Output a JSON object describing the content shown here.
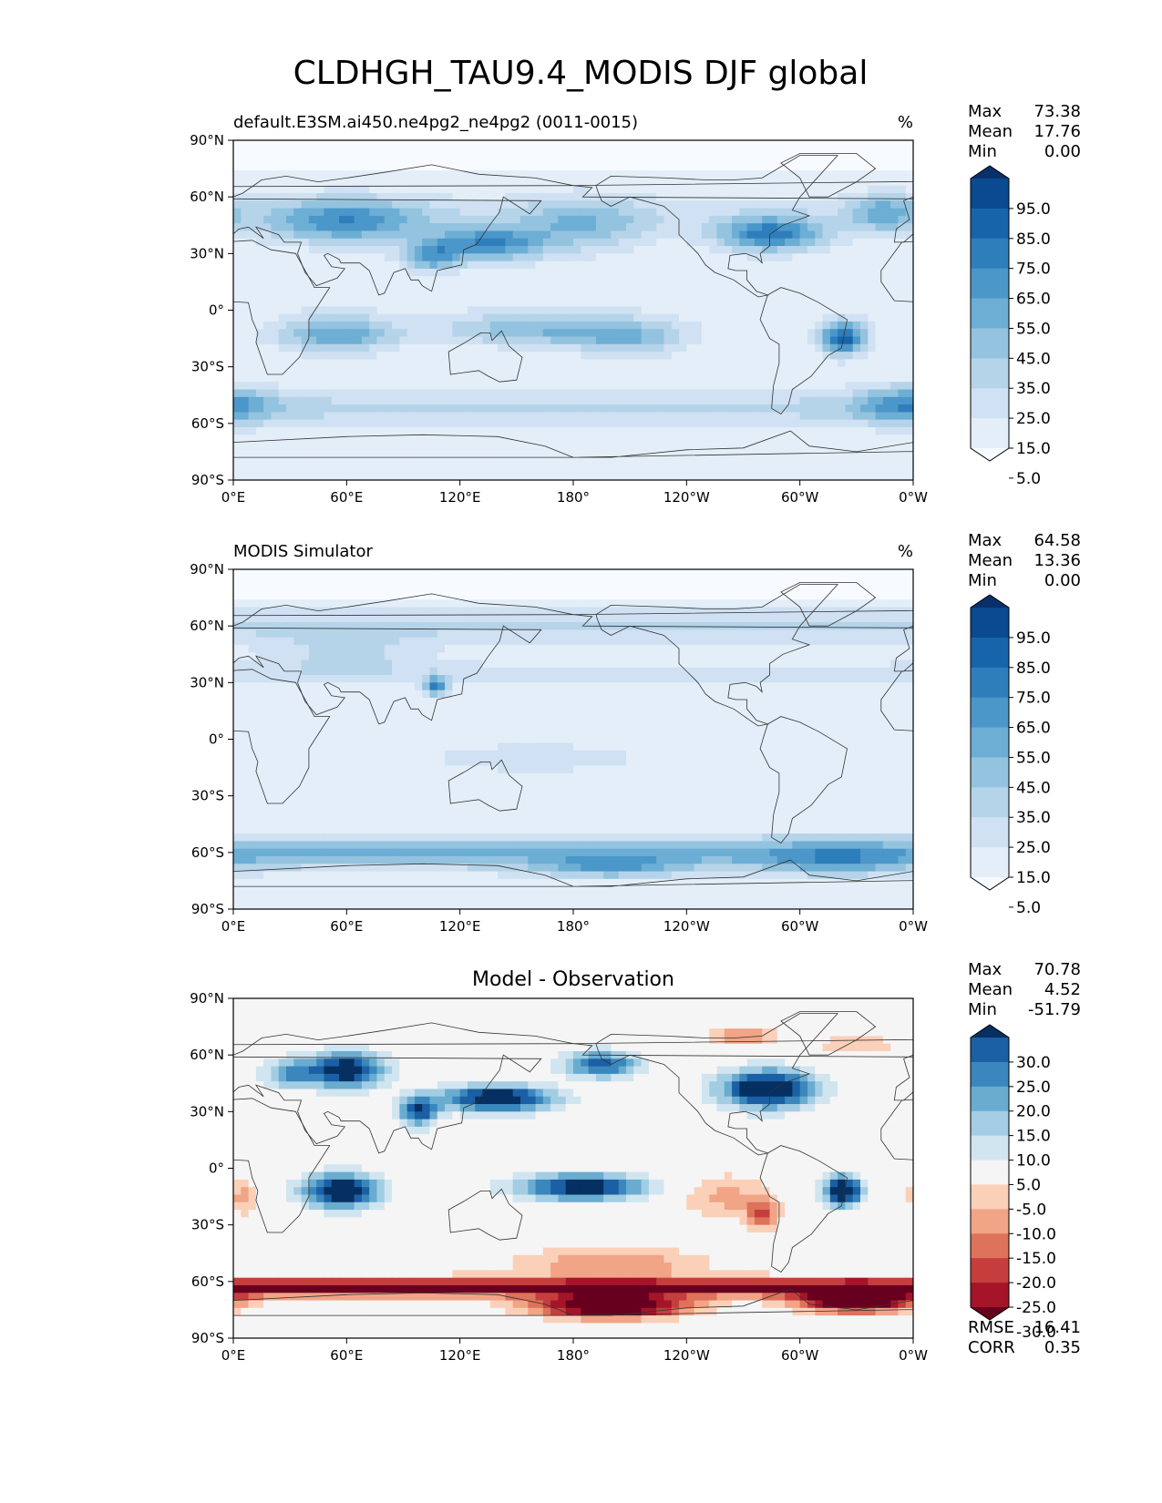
{
  "figure": {
    "title": "CLDHGH_TAU9.4_MODIS DJF global"
  },
  "chart_data": [
    {
      "type": "heatmap",
      "panel": "test",
      "title_left": "default.E3SM.ai450.ne4pg2_ne4pg2 (0011-0015)",
      "title_right": "%",
      "x_ticks": [
        "0°E",
        "60°E",
        "120°E",
        "180°",
        "120°W",
        "60°W",
        "0°W"
      ],
      "y_ticks": [
        "90°N",
        "60°N",
        "30°N",
        "0°",
        "30°S",
        "60°S",
        "90°S"
      ],
      "xlim": [
        0,
        360
      ],
      "ylim": [
        -90,
        90
      ],
      "stats": [
        {
          "label": "Max",
          "value": "73.38"
        },
        {
          "label": "Mean",
          "value": "17.76"
        },
        {
          "label": "Min",
          "value": "0.00"
        }
      ],
      "colorbar": {
        "labels": [
          "95.0",
          "85.0",
          "75.0",
          "65.0",
          "55.0",
          "45.0",
          "35.0",
          "25.0",
          "15.0",
          "5.0"
        ],
        "colors": [
          "#f7fbff",
          "#e3eef8",
          "#cfe1f2",
          "#b5d4e9",
          "#93c3df",
          "#6daed5",
          "#4b97c9",
          "#2f7ebc",
          "#1864aa",
          "#0a4a90",
          "#08306b"
        ],
        "extend": "both"
      },
      "features": [
        {
          "type": "blob",
          "lon": 60,
          "lat": 47,
          "value": 48,
          "spread_lon": 42,
          "spread_lat": 12
        },
        {
          "type": "blob",
          "lon": 135,
          "lat": 35,
          "value": 55,
          "spread_lon": 30,
          "spread_lat": 9
        },
        {
          "type": "blob",
          "lon": 105,
          "lat": 28,
          "value": 45,
          "spread_lon": 15,
          "spread_lat": 8
        },
        {
          "type": "blob",
          "lon": 185,
          "lat": 45,
          "value": 30,
          "spread_lon": 35,
          "spread_lat": 15
        },
        {
          "type": "blob",
          "lon": 285,
          "lat": 40,
          "value": 62,
          "spread_lon": 28,
          "spread_lat": 9
        },
        {
          "type": "blob",
          "lon": 345,
          "lat": 52,
          "value": 35,
          "spread_lon": 18,
          "spread_lat": 10
        },
        {
          "type": "blob",
          "lon": 55,
          "lat": -13,
          "value": 45,
          "spread_lon": 30,
          "spread_lat": 10
        },
        {
          "type": "blob",
          "lon": 160,
          "lat": -10,
          "value": 35,
          "spread_lon": 50,
          "spread_lat": 9
        },
        {
          "type": "blob",
          "lon": 210,
          "lat": -15,
          "value": 30,
          "spread_lon": 30,
          "spread_lat": 10
        },
        {
          "type": "blob",
          "lon": 323,
          "lat": -15,
          "value": 72,
          "spread_lon": 12,
          "spread_lat": 9
        },
        {
          "type": "blob",
          "lon": 355,
          "lat": -50,
          "value": 40,
          "spread_lon": 25,
          "spread_lat": 10
        },
        {
          "type": "band",
          "lat": -52,
          "value": 22,
          "spread_lat": 10
        },
        {
          "type": "band",
          "lat": 50,
          "value": 12,
          "spread_lat": 12
        }
      ]
    },
    {
      "type": "heatmap",
      "panel": "reference",
      "title_left": "MODIS Simulator",
      "title_right": "%",
      "x_ticks": [
        "0°E",
        "60°E",
        "120°E",
        "180°",
        "120°W",
        "60°W",
        "0°W"
      ],
      "y_ticks": [
        "90°N",
        "60°N",
        "30°N",
        "0°",
        "30°S",
        "60°S",
        "90°S"
      ],
      "xlim": [
        0,
        360
      ],
      "ylim": [
        -90,
        90
      ],
      "stats": [
        {
          "label": "Max",
          "value": "64.58"
        },
        {
          "label": "Mean",
          "value": "13.36"
        },
        {
          "label": "Min",
          "value": "0.00"
        }
      ],
      "colorbar": {
        "labels": [
          "95.0",
          "85.0",
          "75.0",
          "65.0",
          "55.0",
          "45.0",
          "35.0",
          "25.0",
          "15.0",
          "5.0"
        ],
        "colors": [
          "#f7fbff",
          "#e3eef8",
          "#cfe1f2",
          "#b5d4e9",
          "#93c3df",
          "#6daed5",
          "#4b97c9",
          "#2f7ebc",
          "#1864aa",
          "#0a4a90",
          "#08306b"
        ],
        "extend": "both"
      },
      "features": [
        {
          "type": "band",
          "lat": -60,
          "value": 40,
          "spread_lat": 9
        },
        {
          "type": "band",
          "lat": 60,
          "value": 20,
          "spread_lat": 10
        },
        {
          "type": "band",
          "lat": 35,
          "value": 12,
          "spread_lat": 8
        },
        {
          "type": "blob",
          "lon": 107,
          "lat": 28,
          "value": 60,
          "spread_lon": 6,
          "spread_lat": 5
        },
        {
          "type": "blob",
          "lon": 200,
          "lat": -68,
          "value": 35,
          "spread_lon": 40,
          "spread_lat": 6
        },
        {
          "type": "blob",
          "lon": 320,
          "lat": -65,
          "value": 30,
          "spread_lon": 40,
          "spread_lat": 8
        },
        {
          "type": "blob",
          "lon": 60,
          "lat": 45,
          "value": 18,
          "spread_lon": 40,
          "spread_lat": 12
        },
        {
          "type": "blob",
          "lon": 160,
          "lat": -10,
          "value": 12,
          "spread_lon": 60,
          "spread_lat": 8
        }
      ]
    },
    {
      "type": "heatmap",
      "panel": "difference",
      "title_center": "Model - Observation",
      "x_ticks": [
        "0°E",
        "60°E",
        "120°E",
        "180°",
        "120°W",
        "60°W",
        "0°W"
      ],
      "y_ticks": [
        "90°N",
        "60°N",
        "30°N",
        "0°",
        "30°S",
        "60°S",
        "90°S"
      ],
      "xlim": [
        0,
        360
      ],
      "ylim": [
        -90,
        90
      ],
      "stats": [
        {
          "label": "Max",
          "value": "70.78"
        },
        {
          "label": "Mean",
          "value": "4.52"
        },
        {
          "label": "Min",
          "value": "-51.79"
        }
      ],
      "colorbar": {
        "labels": [
          "30.0",
          "25.0",
          "20.0",
          "15.0",
          "10.0",
          "5.0",
          "-5.0",
          "-10.0",
          "-15.0",
          "-20.0",
          "-25.0",
          "-30.0"
        ],
        "colors": [
          "#67001f",
          "#a51429",
          "#c53e3d",
          "#de725b",
          "#f1a486",
          "#fbd0b9",
          "#f5f5f5",
          "#d1e5f0",
          "#a2cde3",
          "#6aacd0",
          "#3a87bd",
          "#1b5fa4",
          "#053061"
        ],
        "extend": "both"
      },
      "summary": [
        {
          "label": "RMSE",
          "value": "16.41"
        },
        {
          "label": "CORR",
          "value": "0.35"
        }
      ],
      "features": [
        {
          "type": "blob",
          "lon": 60,
          "lat": 52,
          "value": 38,
          "spread_lon": 20,
          "spread_lat": 9
        },
        {
          "type": "blob",
          "lon": 30,
          "lat": 50,
          "value": 18,
          "spread_lon": 15,
          "spread_lat": 8
        },
        {
          "type": "blob",
          "lon": 98,
          "lat": 30,
          "value": 30,
          "spread_lon": 10,
          "spread_lat": 8
        },
        {
          "type": "blob",
          "lon": 140,
          "lat": 37,
          "value": 38,
          "spread_lon": 30,
          "spread_lat": 7
        },
        {
          "type": "blob",
          "lon": 195,
          "lat": 55,
          "value": 28,
          "spread_lon": 20,
          "spread_lat": 7
        },
        {
          "type": "blob",
          "lon": 283,
          "lat": 42,
          "value": 42,
          "spread_lon": 25,
          "spread_lat": 10
        },
        {
          "type": "blob",
          "lon": 57,
          "lat": -12,
          "value": 40,
          "spread_lon": 20,
          "spread_lat": 9
        },
        {
          "type": "blob",
          "lon": 185,
          "lat": -10,
          "value": 35,
          "spread_lon": 35,
          "spread_lat": 7
        },
        {
          "type": "blob",
          "lon": 323,
          "lat": -12,
          "value": 42,
          "spread_lon": 10,
          "spread_lat": 8
        },
        {
          "type": "blob",
          "lon": 260,
          "lat": -15,
          "value": -12,
          "spread_lon": 25,
          "spread_lat": 12
        },
        {
          "type": "blob",
          "lon": 280,
          "lat": -25,
          "value": -20,
          "spread_lon": 8,
          "spread_lat": 8
        },
        {
          "type": "blob",
          "lon": 5,
          "lat": -15,
          "value": -12,
          "spread_lon": 8,
          "spread_lat": 10
        },
        {
          "type": "blob",
          "lon": 330,
          "lat": 65,
          "value": -10,
          "spread_lon": 20,
          "spread_lat": 6
        },
        {
          "type": "blob",
          "lon": 270,
          "lat": 70,
          "value": -15,
          "spread_lon": 20,
          "spread_lat": 5
        },
        {
          "type": "band",
          "lat": -63,
          "value": -32,
          "spread_lat": 5
        },
        {
          "type": "blob",
          "lon": 200,
          "lat": -73,
          "value": -45,
          "spread_lon": 40,
          "spread_lat": 6
        },
        {
          "type": "blob",
          "lon": 330,
          "lat": -70,
          "value": -45,
          "spread_lon": 30,
          "spread_lat": 6
        },
        {
          "type": "blob",
          "lon": 200,
          "lat": -50,
          "value": -15,
          "spread_lon": 50,
          "spread_lat": 8
        }
      ]
    }
  ]
}
